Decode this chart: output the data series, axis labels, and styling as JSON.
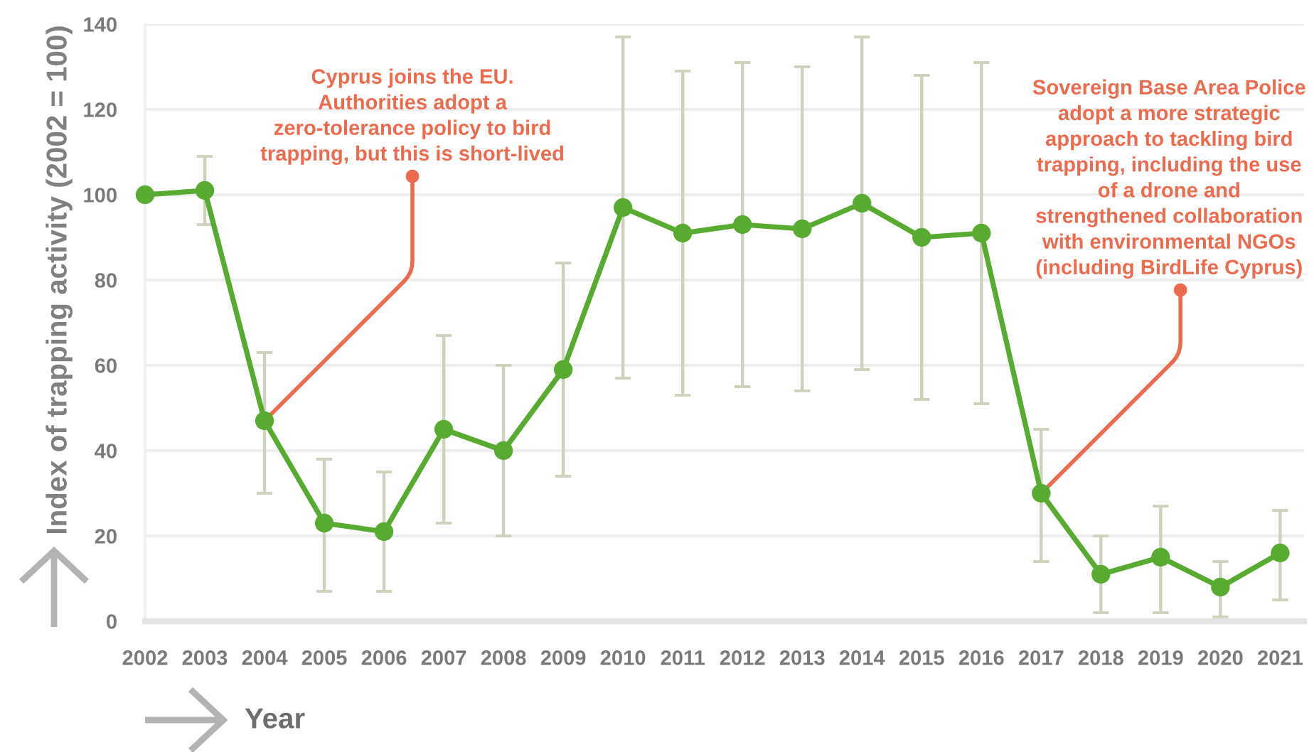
{
  "chart_data": {
    "type": "line",
    "xlabel": "Year",
    "ylabel": "Index of trapping activity (2002 = 100)",
    "x": [
      2002,
      2003,
      2004,
      2005,
      2006,
      2007,
      2008,
      2009,
      2010,
      2011,
      2012,
      2013,
      2014,
      2015,
      2016,
      2017,
      2018,
      2019,
      2020,
      2021
    ],
    "values": [
      100,
      101,
      47,
      23,
      21,
      45,
      40,
      59,
      97,
      91,
      93,
      92,
      98,
      90,
      91,
      30,
      11,
      15,
      8,
      16
    ],
    "errors": [
      null,
      [
        93,
        109
      ],
      [
        30,
        63
      ],
      [
        7,
        38
      ],
      [
        7,
        35
      ],
      [
        23,
        67
      ],
      [
        20,
        60
      ],
      [
        34,
        84
      ],
      [
        57,
        137
      ],
      [
        53,
        129
      ],
      [
        55,
        131
      ],
      [
        54,
        130
      ],
      [
        59,
        137
      ],
      [
        52,
        128
      ],
      [
        51,
        131
      ],
      [
        14,
        45
      ],
      [
        2,
        20
      ],
      [
        2,
        27
      ],
      [
        1,
        14
      ],
      [
        5,
        26
      ]
    ],
    "color": "#58ab30",
    "marker": "circle",
    "line_style": "solid",
    "grid": "y",
    "xlim": [
      2002,
      2021.4
    ],
    "xticks": [
      2002,
      2003,
      2004,
      2005,
      2006,
      2007,
      2008,
      2009,
      2010,
      2011,
      2012,
      2013,
      2014,
      2015,
      2016,
      2017,
      2018,
      2019,
      2020,
      2021
    ],
    "ylim": [
      0,
      140
    ],
    "yticks": [
      0,
      20,
      40,
      60,
      80,
      100,
      120,
      140
    ],
    "annotations": [
      {
        "text": "Cyprus joins the EU.\nAuthorities adopt a\nzero-tolerance policy to bird\ntrapping, but this is short-lived",
        "x": 2004,
        "y": 47
      },
      {
        "text": "Sovereign Base Area Police\nadopt a more strategic\napproach to tackling bird\ntrapping, including the use\nof a drone and\nstrengthened collaboration\nwith environmental NGOs\n(including BirdLife Cyprus)",
        "x": 2017,
        "y": 30
      }
    ]
  }
}
